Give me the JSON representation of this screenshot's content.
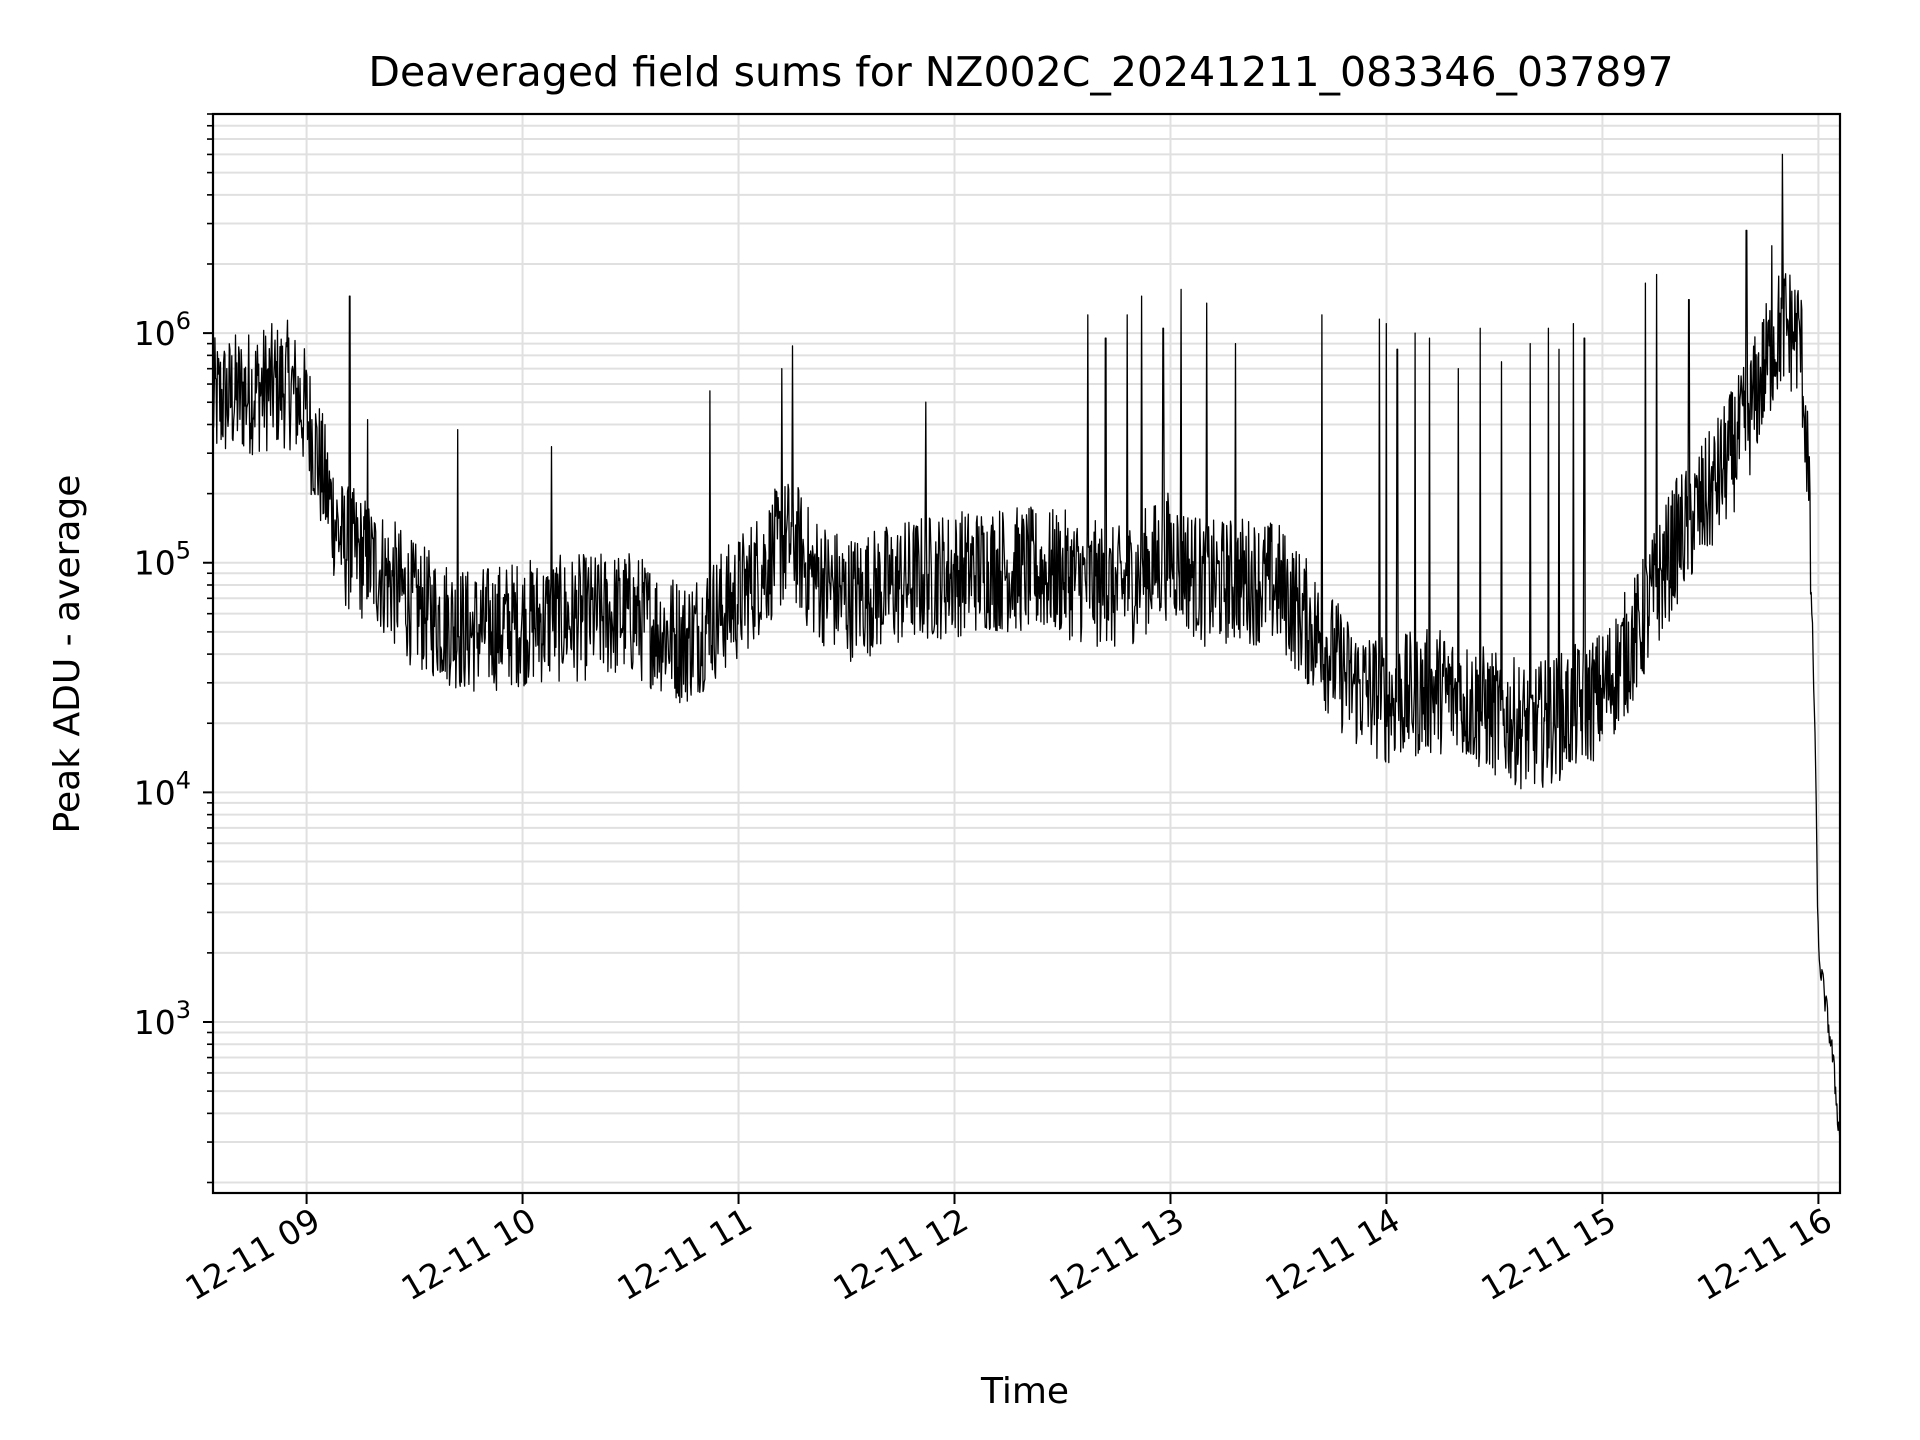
{
  "chart_data": {
    "type": "line",
    "title": "Deaveraged field sums for NZ002C_20241211_083346_037897",
    "xlabel": "Time",
    "ylabel": "Peak ADU - average",
    "yscale": "log",
    "xlim": [
      "2024-12-11 08:34",
      "2024-12-11 16:06"
    ],
    "ylim": [
      180,
      9000000
    ],
    "grid": true,
    "x_ticks": [
      "12-11 09",
      "12-11 10",
      "12-11 11",
      "12-11 12",
      "12-11 13",
      "12-11 14",
      "12-11 15",
      "12-11 16"
    ],
    "y_ticks": [
      {
        "base": "10",
        "exp": "3",
        "value": 1000
      },
      {
        "base": "10",
        "exp": "4",
        "value": 10000
      },
      {
        "base": "10",
        "exp": "5",
        "value": 100000
      },
      {
        "base": "10",
        "exp": "6",
        "value": 1000000
      }
    ],
    "line_color": "#000000",
    "grid_color": "#e0e0e0",
    "baseline": [
      [
        "08:34",
        500000
      ],
      [
        "08:45",
        560000
      ],
      [
        "08:55",
        600000
      ],
      [
        "09:00",
        450000
      ],
      [
        "09:05",
        220000
      ],
      [
        "09:10",
        120000
      ],
      [
        "09:20",
        95000
      ],
      [
        "09:30",
        65000
      ],
      [
        "09:45",
        50000
      ],
      [
        "10:00",
        55000
      ],
      [
        "10:30",
        60000
      ],
      [
        "10:45",
        45000
      ],
      [
        "11:00",
        70000
      ],
      [
        "11:10",
        110000
      ],
      [
        "11:15",
        130000
      ],
      [
        "11:20",
        90000
      ],
      [
        "11:30",
        70000
      ],
      [
        "11:50",
        85000
      ],
      [
        "12:10",
        95000
      ],
      [
        "12:30",
        90000
      ],
      [
        "12:45",
        75000
      ],
      [
        "13:00",
        110000
      ],
      [
        "13:10",
        80000
      ],
      [
        "13:20",
        85000
      ],
      [
        "13:30",
        80000
      ],
      [
        "13:40",
        50000
      ],
      [
        "13:50",
        30000
      ],
      [
        "14:00",
        25000
      ],
      [
        "14:15",
        28000
      ],
      [
        "14:30",
        22000
      ],
      [
        "14:40",
        19000
      ],
      [
        "14:50",
        22000
      ],
      [
        "15:00",
        27000
      ],
      [
        "15:10",
        50000
      ],
      [
        "15:20",
        120000
      ],
      [
        "15:30",
        200000
      ],
      [
        "15:40",
        400000
      ],
      [
        "15:45",
        700000
      ],
      [
        "15:50",
        1100000
      ],
      [
        "15:55",
        950000
      ],
      [
        "15:57",
        300000
      ],
      [
        "15:59",
        20000
      ],
      [
        "16:00",
        2000
      ],
      [
        "16:02",
        1200
      ],
      [
        "16:04",
        700
      ],
      [
        "16:06",
        300
      ]
    ],
    "noise_decades": 0.28,
    "spikes": [
      [
        "09:12",
        1450000
      ],
      [
        "09:17",
        420000
      ],
      [
        "09:42",
        380000
      ],
      [
        "10:08",
        320000
      ],
      [
        "10:52",
        560000
      ],
      [
        "11:12",
        700000
      ],
      [
        "11:15",
        880000
      ],
      [
        "11:52",
        500000
      ],
      [
        "12:37",
        1200000
      ],
      [
        "12:42",
        950000
      ],
      [
        "12:48",
        1200000
      ],
      [
        "12:52",
        1450000
      ],
      [
        "12:58",
        1050000
      ],
      [
        "13:03",
        1550000
      ],
      [
        "13:10",
        1350000
      ],
      [
        "13:18",
        900000
      ],
      [
        "13:42",
        1200000
      ],
      [
        "13:58",
        1150000
      ],
      [
        "14:00",
        1100000
      ],
      [
        "14:03",
        850000
      ],
      [
        "14:08",
        1000000
      ],
      [
        "14:12",
        950000
      ],
      [
        "14:20",
        700000
      ],
      [
        "14:26",
        1050000
      ],
      [
        "14:32",
        750000
      ],
      [
        "14:40",
        900000
      ],
      [
        "14:45",
        1050000
      ],
      [
        "14:48",
        850000
      ],
      [
        "14:52",
        1100000
      ],
      [
        "14:55",
        950000
      ],
      [
        "15:12",
        1650000
      ],
      [
        "15:15",
        1800000
      ],
      [
        "15:24",
        1400000
      ],
      [
        "15:40",
        2800000
      ],
      [
        "15:47",
        2400000
      ],
      [
        "15:50",
        6000000
      ]
    ]
  }
}
